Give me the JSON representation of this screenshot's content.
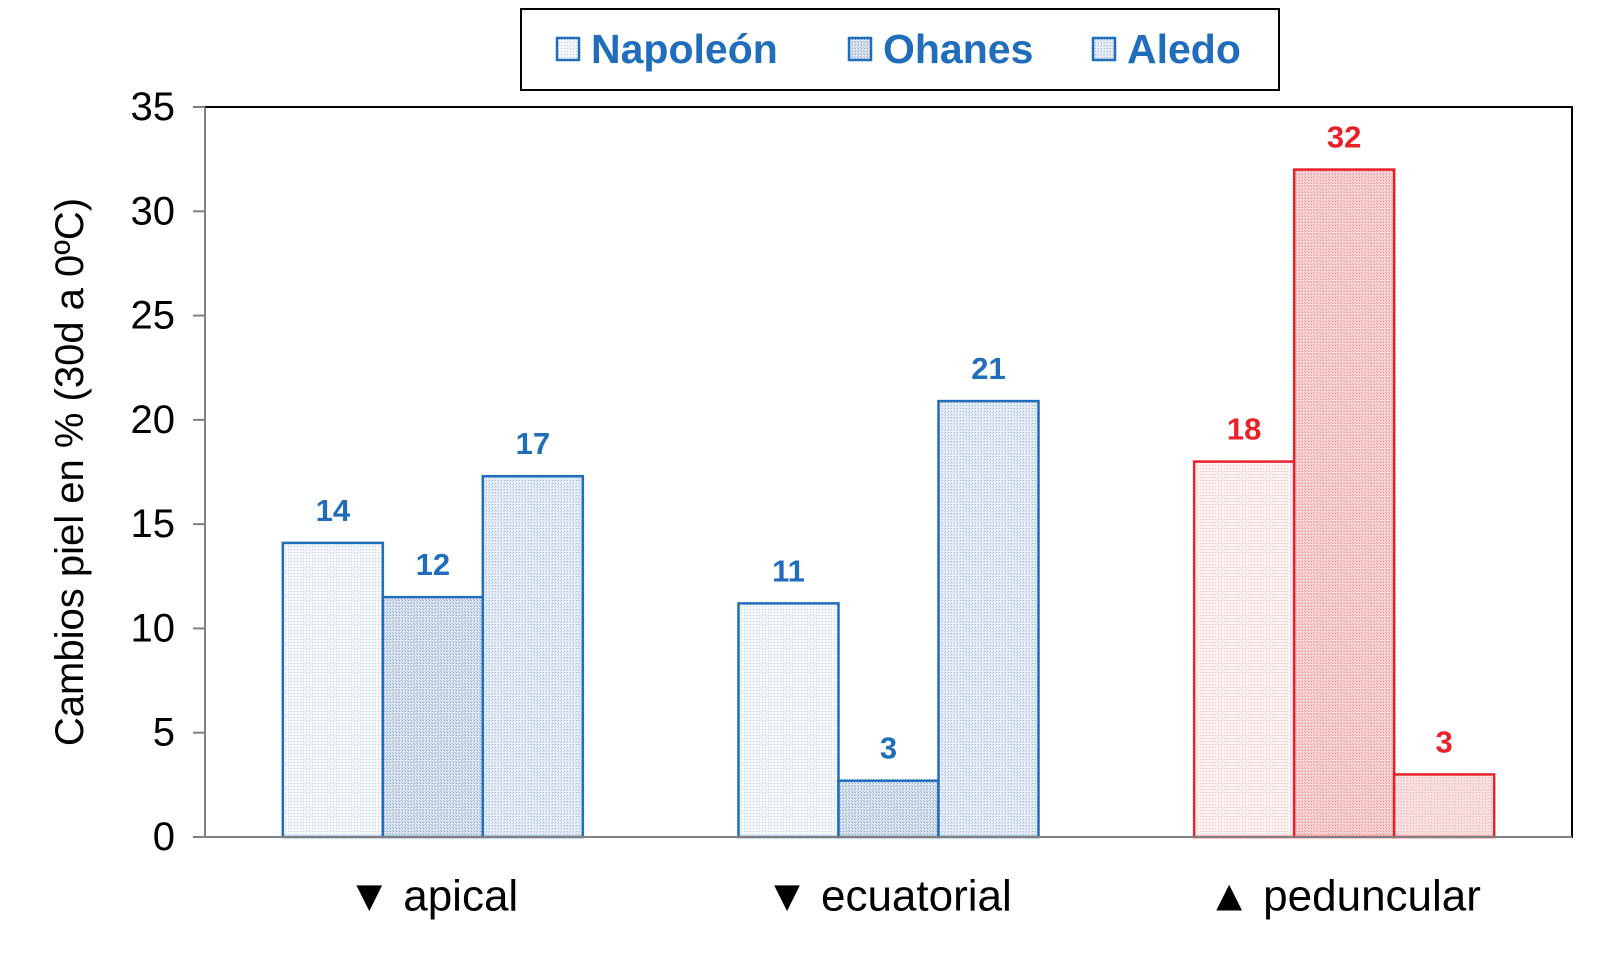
{
  "chart_data": {
    "type": "bar",
    "title": "",
    "ylabel": "Cambios piel en % (30d a 0ºC)",
    "xlabel": "",
    "ylim": [
      0,
      35
    ],
    "yticks": [
      0,
      5,
      10,
      15,
      20,
      25,
      30,
      35
    ],
    "grid": false,
    "legend_position": "top-center",
    "categories": [
      "▼ apical",
      "▼ ecuatorial",
      "▲ peduncular"
    ],
    "category_colors": [
      "#1f6dbb",
      "#1f6dbb",
      "#e8212a"
    ],
    "series": [
      {
        "name": "Napoleón",
        "values": [
          14.1,
          11.2,
          18.0
        ],
        "labels": [
          "14",
          "11",
          "18"
        ]
      },
      {
        "name": "Ohanes",
        "values": [
          11.5,
          2.7,
          32.0
        ],
        "labels": [
          "12",
          "3",
          "32"
        ]
      },
      {
        "name": "Aledo",
        "values": [
          17.3,
          20.9,
          3.0
        ],
        "labels": [
          "17",
          "21",
          "3"
        ]
      }
    ],
    "colors": {
      "blue": "#1f6dbb",
      "red": "#e8212a",
      "legend_text": "#1f6dbb",
      "axis": "#808080"
    }
  }
}
